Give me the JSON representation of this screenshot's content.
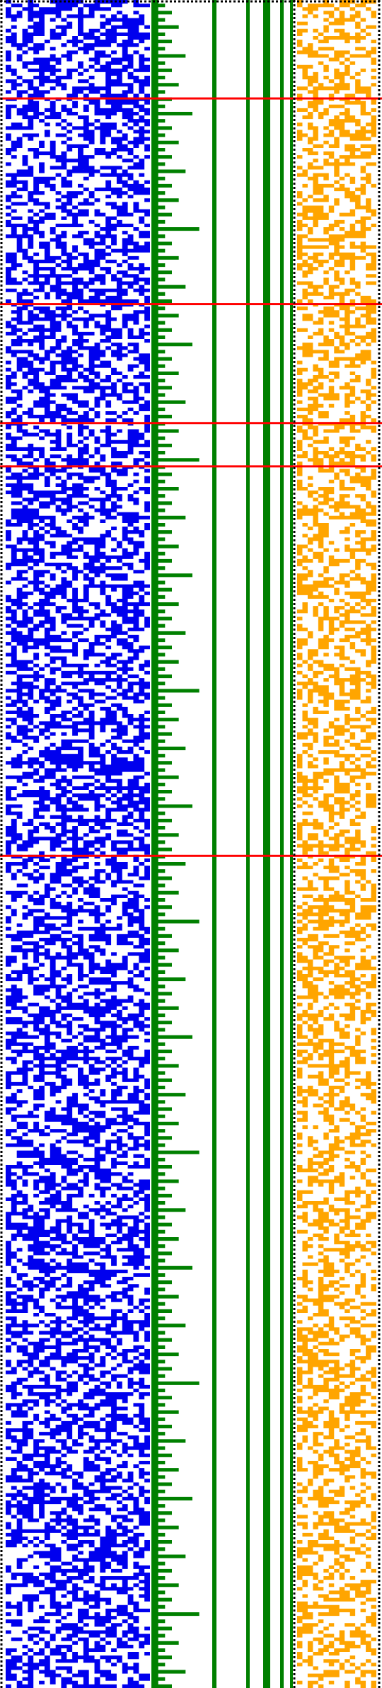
{
  "palette": {
    "background": "#ffffff",
    "bits_left": "#0000ee",
    "counter": "#008000",
    "bits_right": "#ffa500",
    "separator": "#ff0000",
    "frame": "#000000"
  },
  "grid": {
    "rows": 468,
    "left_columns": 26,
    "right_columns": 15,
    "left_density": 0.52,
    "right_density": 0.45,
    "counter_stair_steps": 5,
    "long_green_lines": 5
  },
  "separators": {
    "row_indices": [
      27,
      84,
      117,
      129,
      237
    ]
  },
  "borders": {
    "style": "dotted"
  }
}
